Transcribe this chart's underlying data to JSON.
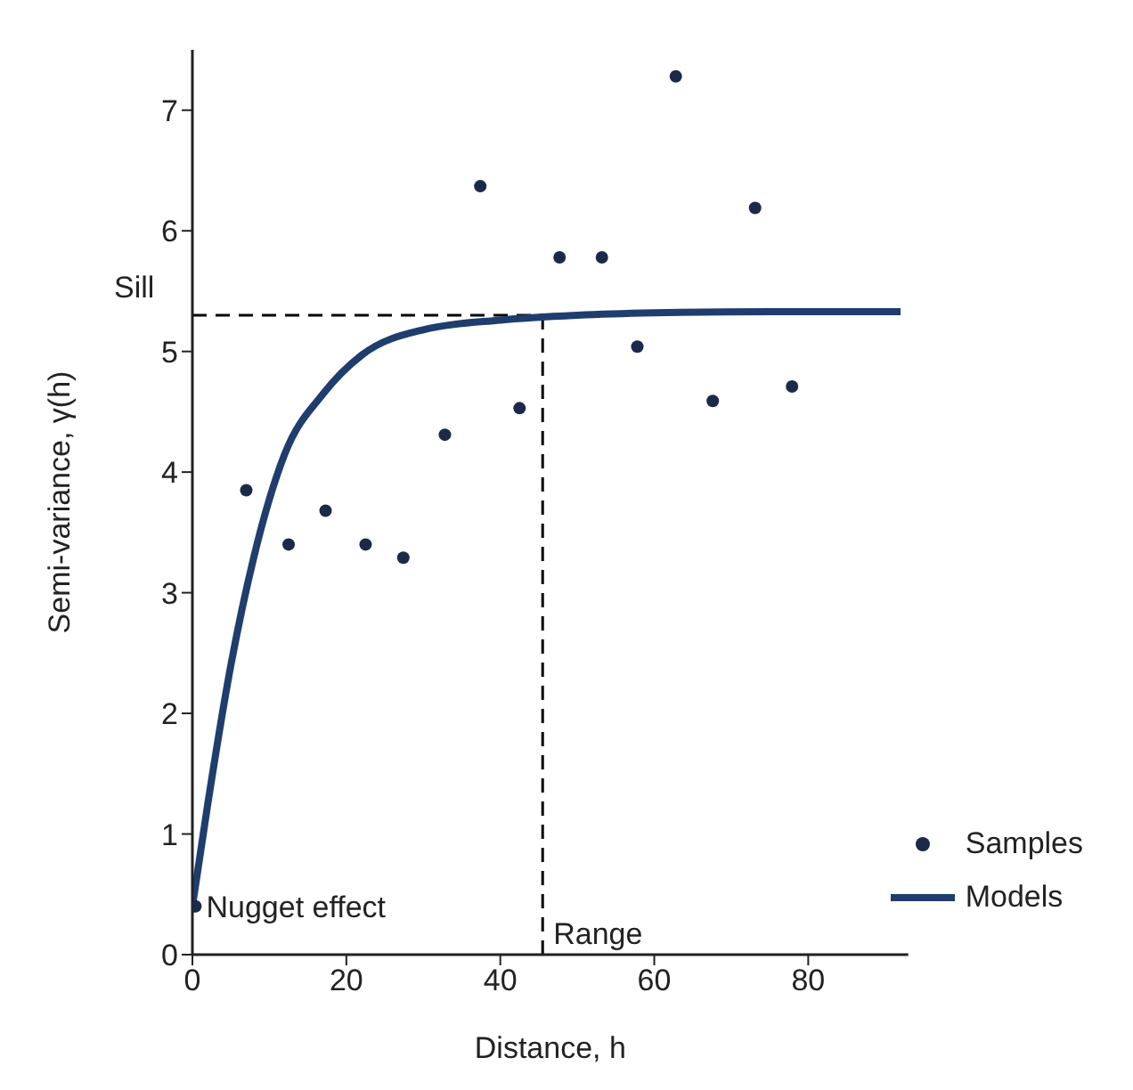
{
  "chart_data": {
    "type": "scatter",
    "xlabel": "Distance, h",
    "ylabel": "Semi-variance, γ(h)",
    "xlim": [
      0,
      93
    ],
    "ylim": [
      0,
      7.5
    ],
    "xticks": [
      0,
      20,
      40,
      60,
      80
    ],
    "yticks": [
      0,
      1,
      2,
      3,
      4,
      5,
      6,
      7
    ],
    "series": [
      {
        "name": "Samples",
        "color": "#1b2a4a",
        "marker": "circle",
        "x": [
          0.4,
          7,
          12.5,
          17.3,
          22.5,
          27.4,
          32.8,
          37.4,
          42.5,
          47.7,
          53.2,
          57.8,
          62.8,
          67.6,
          73.1,
          77.9
        ],
        "values": [
          0.4,
          3.85,
          3.4,
          3.68,
          3.4,
          3.29,
          4.31,
          6.37,
          4.53,
          5.78,
          5.78,
          5.04,
          7.28,
          4.59,
          6.19,
          4.71
        ]
      },
      {
        "name": "Models",
        "type": "line",
        "color": "#1f3d6e",
        "marker": "none",
        "x": [
          0,
          2,
          5,
          8,
          12,
          17,
          22,
          30,
          40,
          50,
          60,
          75,
          92
        ],
        "values": [
          0.4,
          1.25,
          2.4,
          3.3,
          4.15,
          4.65,
          4.97,
          5.18,
          5.26,
          5.3,
          5.32,
          5.33,
          5.33
        ]
      }
    ],
    "ref_lines": [
      {
        "axis": "y",
        "value": 5.3,
        "label": "Sill",
        "line_style": "dashed",
        "color": "#000000"
      },
      {
        "axis": "x",
        "value": 45.5,
        "label": "Range",
        "line_style": "dashed",
        "color": "#000000"
      }
    ],
    "annotations": [
      {
        "text": "Nugget effect",
        "x": 0.4,
        "y": 0.4
      }
    ],
    "grid": false,
    "legend": "bottom right"
  }
}
